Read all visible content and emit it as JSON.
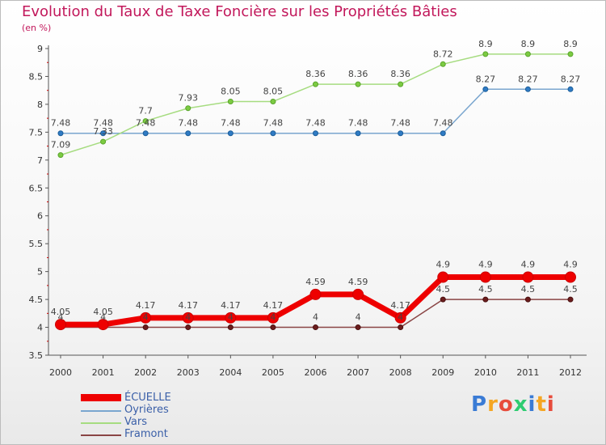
{
  "title": "Evolution du Taux de Taxe Foncière sur les Propriétés Bâties",
  "subtitle": "(en %)",
  "logo": {
    "letters": [
      "P",
      "r",
      "o",
      "x",
      "i",
      "t",
      "i"
    ],
    "colors": [
      "#3a7bd5",
      "#f5a623",
      "#e74c3c",
      "#2ecc71",
      "#3a7bd5",
      "#f5a623",
      "#e74c3c"
    ]
  },
  "chart_data": {
    "type": "line",
    "title": "Evolution du Taux de Taxe Foncière sur les Propriétés Bâties",
    "ylabel": "(en %)",
    "xlabel": "",
    "x": [
      "2000",
      "2001",
      "2002",
      "2003",
      "2004",
      "2005",
      "2006",
      "2007",
      "2008",
      "2009",
      "2010",
      "2011",
      "2012"
    ],
    "ylim": [
      3.5,
      9
    ],
    "yticks": [
      "3.5",
      "4",
      "4.5",
      "5",
      "5.5",
      "6",
      "6.5",
      "7",
      "7.5",
      "8",
      "8.5",
      "9"
    ],
    "series": [
      {
        "name": "ÉCUELLE",
        "color": "#ee0000",
        "strokeWidth": 7,
        "markerR": 6.5,
        "markerFill": "#ee0000",
        "markerStroke": "#cc0000",
        "values": [
          4.05,
          4.05,
          4.17,
          4.17,
          4.17,
          4.17,
          4.59,
          4.59,
          4.17,
          4.9,
          4.9,
          4.9,
          4.9
        ],
        "labels": [
          "4.05",
          "4.05",
          "4.17",
          "4.17",
          "4.17",
          "4.17",
          "4.59",
          "4.59",
          "4.17",
          "4.9",
          "4.9",
          "4.9",
          "4.9"
        ],
        "labelPos": "above"
      },
      {
        "name": "Oyrières",
        "color": "#7aa6cf",
        "strokeWidth": 1.5,
        "markerR": 3,
        "markerFill": "#2f7bc4",
        "markerStroke": "#1b5d99",
        "values": [
          7.48,
          7.48,
          7.48,
          7.48,
          7.48,
          7.48,
          7.48,
          7.48,
          7.48,
          7.48,
          8.27,
          8.27,
          8.27
        ],
        "labels": [
          "7.48",
          "7.48",
          "7.48",
          "7.48",
          "7.48",
          "7.48",
          "7.48",
          "7.48",
          "7.48",
          "7.48",
          "8.27",
          "8.27",
          "8.27"
        ],
        "labelPos": "above"
      },
      {
        "name": "Vars",
        "color": "#a6dc80",
        "strokeWidth": 1.5,
        "markerR": 3,
        "markerFill": "#7ccb42",
        "markerStroke": "#5aa52c",
        "values": [
          7.09,
          7.33,
          7.7,
          7.93,
          8.05,
          8.05,
          8.36,
          8.36,
          8.36,
          8.72,
          8.9,
          8.9,
          8.9
        ],
        "labels": [
          "7.09",
          "7.33",
          "7.7",
          "7.93",
          "8.05",
          "8.05",
          "8.36",
          "8.36",
          "8.36",
          "8.72",
          "8.9",
          "8.9",
          "8.9"
        ],
        "labelPos": "above"
      },
      {
        "name": "Framont",
        "color": "#8a4545",
        "strokeWidth": 1.5,
        "markerR": 3,
        "markerFill": "#6b1d1d",
        "markerStroke": "#4a0f0f",
        "values": [
          4,
          4,
          4,
          4,
          4,
          4,
          4,
          4,
          4,
          4.5,
          4.5,
          4.5,
          4.5
        ],
        "labels": [
          "4",
          "4",
          "4",
          "4",
          "4",
          "4",
          "4",
          "4",
          "4",
          "4.5",
          "4.5",
          "4.5",
          "4.5"
        ],
        "labelPos": "above"
      }
    ],
    "legend": "bottom-left",
    "grid": false
  }
}
